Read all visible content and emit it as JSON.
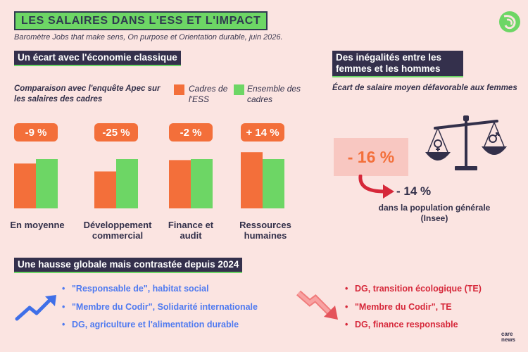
{
  "header": {
    "title": "LES SALAIRES DANS L'ESS ET L'IMPACT",
    "subtitle": "Baromètre Jobs that make sens, On purpose et Orientation durable, juin 2026."
  },
  "left": {
    "section_title": "Un écart avec l'économie classique",
    "note": "Comparaison avec l'enquête Apec sur les salaires des cadres"
  },
  "legend": [
    {
      "label": "Cadres de l'ESS",
      "color": "#f36f3a"
    },
    {
      "label": "Ensemble des cadres",
      "color": "#6dd665"
    }
  ],
  "chart_data": {
    "type": "bar",
    "categories": [
      "En moyenne",
      "Développement commercial",
      "Finance et audit",
      "Ressources humaines"
    ],
    "series": [
      {
        "name": "Cadres de l'ESS",
        "values": [
          0.91,
          0.75,
          0.98,
          1.14
        ]
      },
      {
        "name": "Ensemble des cadres",
        "values": [
          1.0,
          1.0,
          1.0,
          1.0
        ]
      }
    ],
    "differences": [
      "-9 %",
      "-25 %",
      "-2 %",
      "+ 14 %"
    ],
    "colors": {
      "ess": "#f36f3a",
      "all": "#6dd665",
      "badge": "#f36f3a"
    }
  },
  "right": {
    "section_title_line1": "Des inégalités entre les",
    "section_title_line2": "femmes et les hommes",
    "note": "Écart de salaire moyen défavorable aux femmes",
    "gap_main": "- 16 %",
    "gap_general": "- 14 %",
    "gap_general_note": "dans la population générale (Insee)"
  },
  "bottom": {
    "section_title": "Une hausse globale mais contrastée depuis 2024",
    "up_items": [
      "\"Responsable de\", habitat social",
      "\"Membre du Codir\", Solidarité internationale",
      "DG, agriculture et l'alimentation durable"
    ],
    "down_items": [
      "DG, transition écologique (TE)",
      "\"Membre du Codir\", TE",
      "DG, finance responsable"
    ]
  },
  "footer": {
    "brand_line1": "care",
    "brand_line2": "news"
  }
}
